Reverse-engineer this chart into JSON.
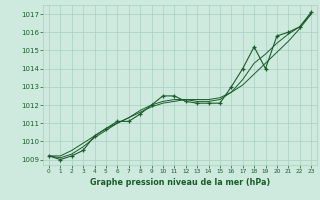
{
  "title": "Graphe pression niveau de la mer (hPa)",
  "bg_color": "#ceeade",
  "grid_color": "#a8cfc0",
  "line_color": "#1a5c2a",
  "marker_color": "#1a5c2a",
  "xlim": [
    -0.5,
    23.5
  ],
  "ylim": [
    1008.7,
    1017.5
  ],
  "yticks": [
    1009,
    1010,
    1011,
    1012,
    1013,
    1014,
    1015,
    1016,
    1017
  ],
  "xticks": [
    0,
    1,
    2,
    3,
    4,
    5,
    6,
    7,
    8,
    9,
    10,
    11,
    12,
    13,
    14,
    15,
    16,
    17,
    18,
    19,
    20,
    21,
    22,
    23
  ],
  "hours": [
    0,
    1,
    2,
    3,
    4,
    5,
    6,
    7,
    8,
    9,
    10,
    11,
    12,
    13,
    14,
    15,
    16,
    17,
    18,
    19,
    20,
    21,
    22,
    23
  ],
  "pressure_main": [
    1009.2,
    1009.0,
    1009.2,
    1009.5,
    1010.3,
    1010.7,
    1011.1,
    1011.1,
    1011.5,
    1012.0,
    1012.5,
    1012.5,
    1012.2,
    1012.1,
    1012.1,
    1012.1,
    1013.0,
    1014.0,
    1015.2,
    1014.0,
    1015.8,
    1016.0,
    1016.3,
    1017.1
  ],
  "pressure_smooth1": [
    1009.2,
    1009.1,
    1009.3,
    1009.7,
    1010.2,
    1010.6,
    1011.0,
    1011.3,
    1011.7,
    1012.0,
    1012.2,
    1012.3,
    1012.3,
    1012.2,
    1012.2,
    1012.3,
    1012.7,
    1013.4,
    1014.3,
    1014.8,
    1015.4,
    1015.9,
    1016.3,
    1017.0
  ],
  "pressure_smooth2": [
    1009.2,
    1009.2,
    1009.5,
    1009.9,
    1010.3,
    1010.7,
    1011.0,
    1011.3,
    1011.6,
    1011.9,
    1012.1,
    1012.2,
    1012.3,
    1012.3,
    1012.3,
    1012.4,
    1012.7,
    1013.1,
    1013.7,
    1014.3,
    1014.9,
    1015.5,
    1016.2,
    1017.0
  ]
}
